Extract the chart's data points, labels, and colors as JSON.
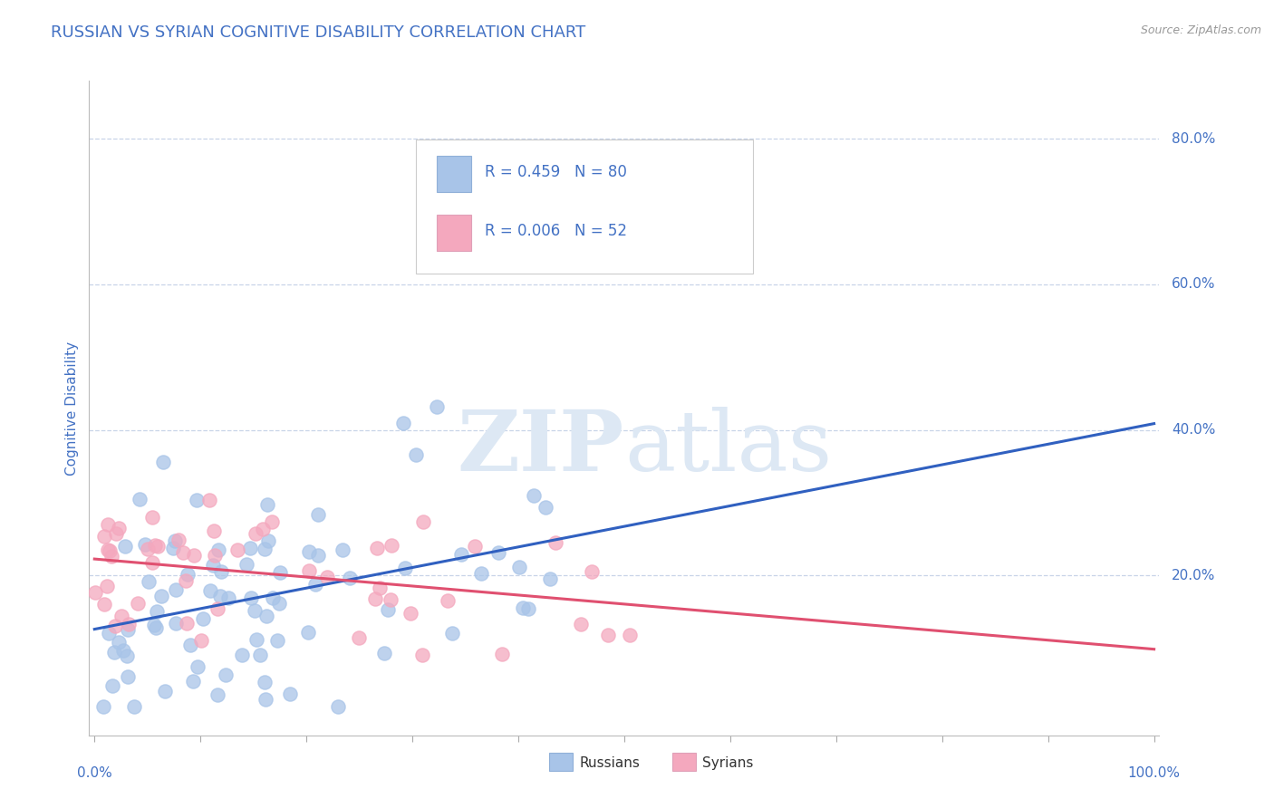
{
  "title": "RUSSIAN VS SYRIAN COGNITIVE DISABILITY CORRELATION CHART",
  "source": "Source: ZipAtlas.com",
  "ylabel": "Cognitive Disability",
  "r_russian": 0.459,
  "n_russian": 80,
  "r_syrian": 0.006,
  "n_syrian": 52,
  "russian_scatter_color": "#a8c4e8",
  "syrian_scatter_color": "#f4a8be",
  "trendline_russian_color": "#3060c0",
  "trendline_syrian_color": "#e05070",
  "watermark_color": "#dde8f4",
  "background_color": "#ffffff",
  "grid_color": "#c8d4e8",
  "title_color": "#4472c4",
  "axis_label_color": "#4472c4",
  "legend_text_color": "#4472c4",
  "legend_box_color": "#cccccc",
  "tick_label_color": "#4472c4"
}
